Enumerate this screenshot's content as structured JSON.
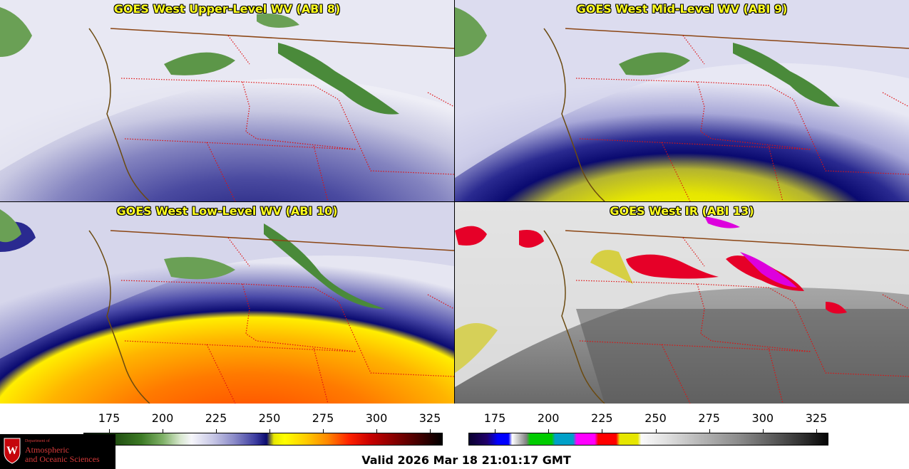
{
  "panels": [
    {
      "title": "GOES West Upper-Level WV (ABI 8)",
      "scheme": "wv"
    },
    {
      "title": "GOES West Mid-Level WV (ABI 9)",
      "scheme": "wv"
    },
    {
      "title": "GOES West Low-Level WV (ABI 10)",
      "scheme": "wv"
    },
    {
      "title": "GOES West IR (ABI 13)",
      "scheme": "ir"
    }
  ],
  "colorbar_left": {
    "ticks": [
      "175",
      "200",
      "225",
      "250",
      "275",
      "300",
      "325"
    ]
  },
  "colorbar_right": {
    "ticks": [
      "175",
      "200",
      "225",
      "250",
      "275",
      "300",
      "325"
    ]
  },
  "logo": {
    "small_text": "Department of",
    "line1": "Atmospheric",
    "line2": "and Oceanic Sciences",
    "shield_letter": "W"
  },
  "valid_time": "Valid 2026 Mar 18 21:01:17 GMT",
  "colors": {
    "title": "#ffff1e",
    "borders": "#e01010",
    "coastline": "#6b4a10"
  }
}
